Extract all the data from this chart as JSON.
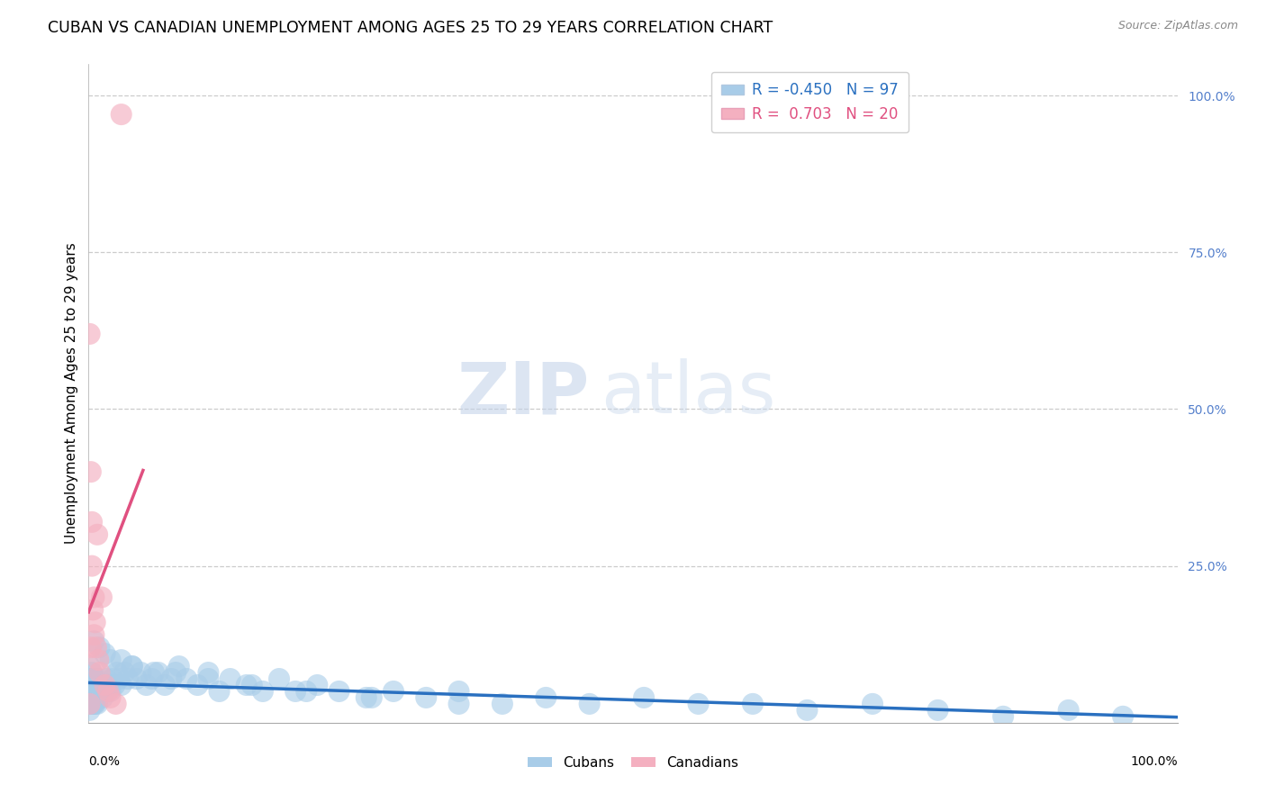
{
  "title": "CUBAN VS CANADIAN UNEMPLOYMENT AMONG AGES 25 TO 29 YEARS CORRELATION CHART",
  "source_text": "Source: ZipAtlas.com",
  "watermark_zip": "ZIP",
  "watermark_atlas": "atlas",
  "ylabel": "Unemployment Among Ages 25 to 29 years",
  "cubans_R": -0.45,
  "cubans_N": 97,
  "cubans_scatter_color": "#a8cce8",
  "cubans_line_color": "#2a70c0",
  "canadians_R": 0.703,
  "canadians_N": 20,
  "canadians_scatter_color": "#f4b0c0",
  "canadians_line_color": "#e05080",
  "background_color": "#ffffff",
  "grid_color": "#cccccc",
  "title_fontsize": 12.5,
  "axis_label_fontsize": 11,
  "tick_fontsize": 10,
  "legend_fontsize": 12,
  "right_tick_color": "#5580cc",
  "watermark_color": "#ccddf0",
  "xlim": [
    0.0,
    1.0
  ],
  "ylim": [
    0.0,
    1.05
  ],
  "cubans_x": [
    0.001,
    0.001,
    0.001,
    0.001,
    0.002,
    0.002,
    0.002,
    0.002,
    0.002,
    0.003,
    0.003,
    0.003,
    0.003,
    0.003,
    0.004,
    0.004,
    0.004,
    0.004,
    0.005,
    0.005,
    0.005,
    0.006,
    0.006,
    0.006,
    0.007,
    0.007,
    0.007,
    0.008,
    0.008,
    0.009,
    0.009,
    0.01,
    0.01,
    0.011,
    0.012,
    0.013,
    0.014,
    0.015,
    0.016,
    0.018,
    0.02,
    0.022,
    0.024,
    0.026,
    0.028,
    0.03,
    0.033,
    0.036,
    0.04,
    0.044,
    0.048,
    0.053,
    0.058,
    0.064,
    0.07,
    0.076,
    0.083,
    0.09,
    0.1,
    0.11,
    0.12,
    0.13,
    0.145,
    0.16,
    0.175,
    0.19,
    0.21,
    0.23,
    0.255,
    0.28,
    0.31,
    0.34,
    0.38,
    0.42,
    0.46,
    0.51,
    0.56,
    0.61,
    0.66,
    0.72,
    0.78,
    0.84,
    0.9,
    0.95,
    0.005,
    0.01,
    0.015,
    0.02,
    0.03,
    0.04,
    0.06,
    0.08,
    0.11,
    0.15,
    0.2,
    0.26,
    0.34
  ],
  "cubans_y": [
    0.06,
    0.04,
    0.09,
    0.02,
    0.05,
    0.03,
    0.07,
    0.04,
    0.06,
    0.05,
    0.03,
    0.08,
    0.04,
    0.07,
    0.05,
    0.03,
    0.06,
    0.04,
    0.05,
    0.03,
    0.07,
    0.04,
    0.06,
    0.03,
    0.05,
    0.07,
    0.04,
    0.06,
    0.03,
    0.05,
    0.04,
    0.07,
    0.05,
    0.06,
    0.05,
    0.04,
    0.06,
    0.05,
    0.07,
    0.06,
    0.05,
    0.07,
    0.06,
    0.08,
    0.07,
    0.06,
    0.08,
    0.07,
    0.09,
    0.07,
    0.08,
    0.06,
    0.07,
    0.08,
    0.06,
    0.07,
    0.09,
    0.07,
    0.06,
    0.08,
    0.05,
    0.07,
    0.06,
    0.05,
    0.07,
    0.05,
    0.06,
    0.05,
    0.04,
    0.05,
    0.04,
    0.05,
    0.03,
    0.04,
    0.03,
    0.04,
    0.03,
    0.03,
    0.02,
    0.03,
    0.02,
    0.01,
    0.02,
    0.01,
    0.13,
    0.12,
    0.11,
    0.1,
    0.1,
    0.09,
    0.08,
    0.08,
    0.07,
    0.06,
    0.05,
    0.04,
    0.03
  ],
  "canadians_x": [
    0.001,
    0.001,
    0.002,
    0.002,
    0.003,
    0.003,
    0.004,
    0.005,
    0.005,
    0.006,
    0.007,
    0.008,
    0.009,
    0.01,
    0.012,
    0.015,
    0.018,
    0.02,
    0.025,
    0.03
  ],
  "canadians_y": [
    0.03,
    0.62,
    0.12,
    0.4,
    0.25,
    0.32,
    0.18,
    0.2,
    0.14,
    0.16,
    0.12,
    0.3,
    0.1,
    0.08,
    0.2,
    0.06,
    0.05,
    0.04,
    0.03,
    0.97
  ]
}
